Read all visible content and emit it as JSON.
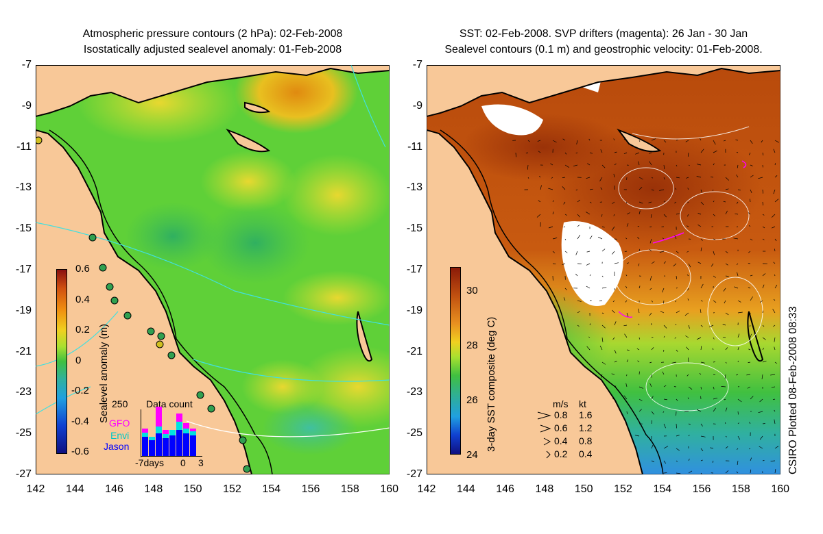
{
  "left_panel": {
    "title_line1": "Atmospheric pressure contours (2 hPa): 02-Feb-2008",
    "title_line2": "Isostatically adjusted sealevel anomaly: 01-Feb-2008",
    "colorbar_label": "Sealevel anomaly (m)",
    "colorbar_ticks": [
      "0.6",
      "0.4",
      "0.2",
      "0",
      "-0.2",
      "-0.4",
      "-0.6"
    ],
    "inset": {
      "title": "Data count",
      "max_label": "250",
      "series": [
        "GFO",
        "Envi",
        "Jason"
      ],
      "series_colors": [
        "#ff00ff",
        "#00e0e0",
        "#0000ff"
      ],
      "x_labels": [
        "-7days",
        "0",
        "3"
      ]
    }
  },
  "right_panel": {
    "title_line1": "SST: 02-Feb-2008. SVP drifters (magenta): 26 Jan - 30 Jan",
    "title_line2": "Sealevel contours (0.1 m) and geostrophic velocity: 01-Feb-2008.",
    "colorbar_label": "3-day SST composite (deg C)",
    "colorbar_ticks": [
      "30",
      "28",
      "26",
      "24"
    ],
    "velocity_legend": {
      "header_ms": "m/s",
      "header_kt": "kt",
      "rows": [
        {
          "ms": "0.8",
          "kt": "1.6"
        },
        {
          "ms": "0.6",
          "kt": "1.2"
        },
        {
          "ms": "0.4",
          "kt": "0.8"
        },
        {
          "ms": "0.2",
          "kt": "0.4"
        }
      ]
    }
  },
  "axes": {
    "lat_ticks": [
      "-7",
      "-9",
      "-11",
      "-13",
      "-15",
      "-17",
      "-19",
      "-21",
      "-23",
      "-25",
      "-27"
    ],
    "lon_ticks": [
      "142",
      "144",
      "146",
      "148",
      "150",
      "152",
      "154",
      "156",
      "158",
      "160"
    ]
  },
  "credit": "CSIRO Plotted 08-Feb-2008 08:33",
  "colors": {
    "land": "#f8c898",
    "sla_field": "#5fd038",
    "sst_field": "#c85a10",
    "coastline": "#000000",
    "pressure_contours": "#40e0e0",
    "drifters": "#ff00ff"
  }
}
